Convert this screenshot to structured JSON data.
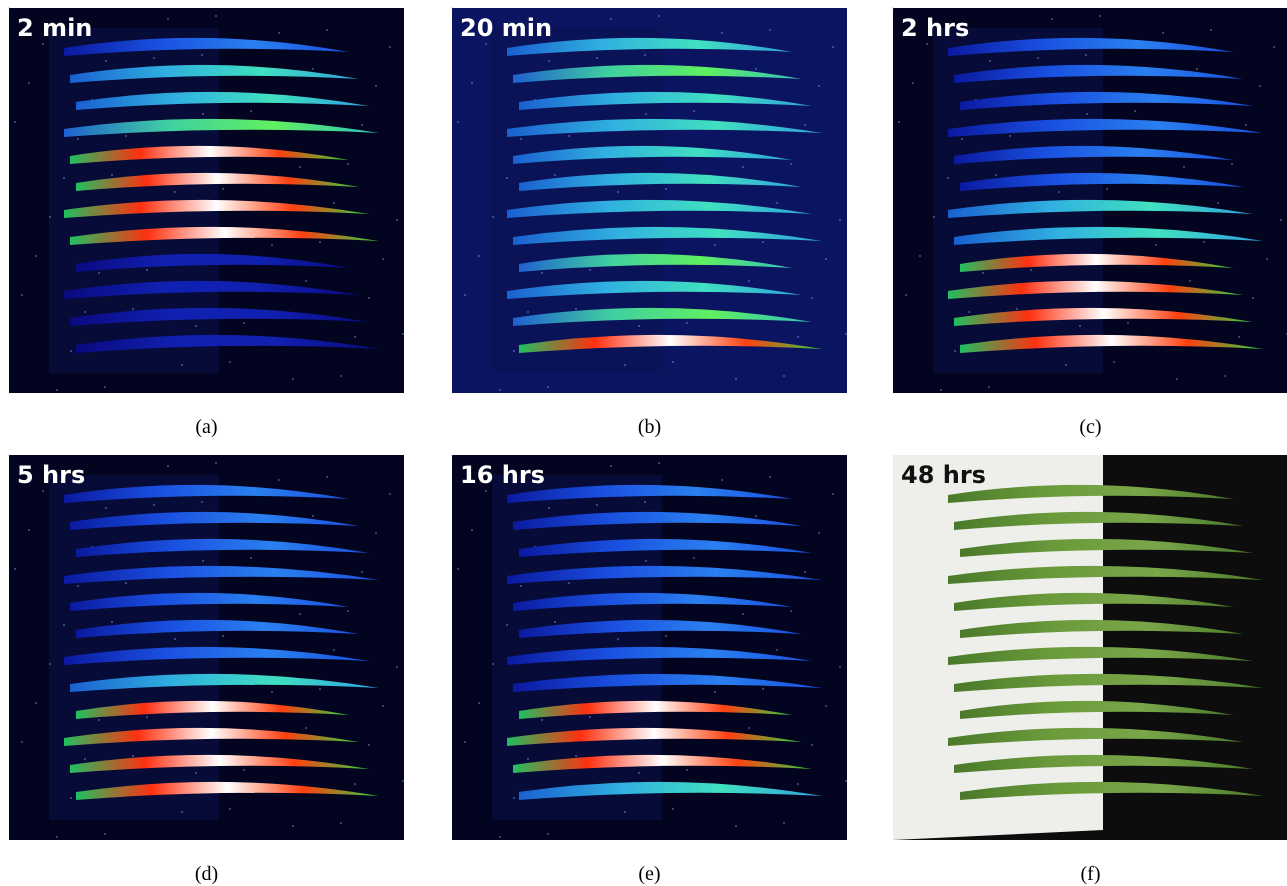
{
  "panels": [
    {
      "label": "2 min",
      "caption": "(a)"
    },
    {
      "label": "20 min",
      "caption": "(b)"
    },
    {
      "label": "2 hrs",
      "caption": "(c)"
    },
    {
      "label": "5 hrs",
      "caption": "(d)"
    },
    {
      "label": "16 hrs",
      "caption": "(e)"
    },
    {
      "label": "48 hrs",
      "caption": "(f)"
    }
  ]
}
